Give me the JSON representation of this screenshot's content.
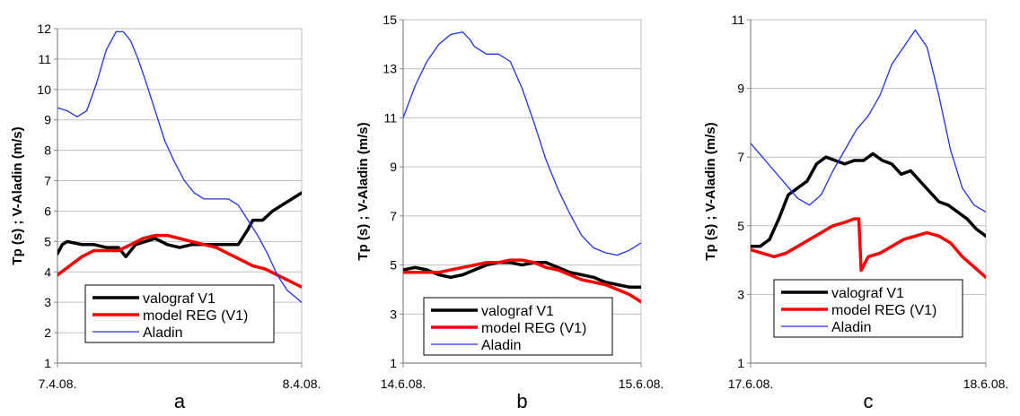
{
  "colors": {
    "valograf": "#000000",
    "model": "#ff0000",
    "aladin": "#2030e0",
    "grid": "#c0c0c0",
    "axis": "#888888"
  },
  "chart_data": [
    {
      "type": "line",
      "panel_label": "a",
      "ylabel": "Tp (s) ; V-Aladin (m/s)",
      "ylim": [
        1,
        12
      ],
      "yticks": [
        1,
        2,
        3,
        4,
        5,
        6,
        7,
        8,
        9,
        10,
        11,
        12
      ],
      "xlim": [
        0,
        1
      ],
      "xtick_labels": [
        "7.4.08.",
        "8.4.08."
      ],
      "grid": "horizontal",
      "legend_position": "bottom-left",
      "series": [
        {
          "name": "valograf V1",
          "color_key": "valograf",
          "width": 3.5,
          "x": [
            0,
            0.02,
            0.04,
            0.1,
            0.15,
            0.2,
            0.25,
            0.28,
            0.32,
            0.36,
            0.4,
            0.45,
            0.5,
            0.55,
            0.6,
            0.65,
            0.7,
            0.74,
            0.78,
            0.8,
            0.84,
            0.88,
            0.92,
            0.96,
            1
          ],
          "y": [
            4.6,
            4.9,
            5.0,
            4.9,
            4.9,
            4.8,
            4.8,
            4.5,
            4.9,
            5.0,
            5.1,
            4.9,
            4.8,
            4.9,
            4.9,
            4.9,
            4.9,
            4.9,
            5.4,
            5.7,
            5.7,
            6.0,
            6.2,
            6.4,
            6.6
          ]
        },
        {
          "name": "model REG (V1)",
          "color_key": "model",
          "width": 3.5,
          "x": [
            0,
            0.05,
            0.1,
            0.15,
            0.2,
            0.25,
            0.3,
            0.35,
            0.4,
            0.45,
            0.5,
            0.55,
            0.6,
            0.65,
            0.7,
            0.75,
            0.8,
            0.85,
            0.9,
            0.95,
            1
          ],
          "y": [
            3.9,
            4.2,
            4.5,
            4.7,
            4.7,
            4.7,
            4.9,
            5.1,
            5.2,
            5.2,
            5.1,
            5.0,
            4.9,
            4.8,
            4.6,
            4.4,
            4.2,
            4.1,
            3.9,
            3.7,
            3.5
          ]
        },
        {
          "name": "Aladin",
          "color_key": "aladin",
          "width": 1.3,
          "x": [
            0,
            0.04,
            0.08,
            0.12,
            0.16,
            0.2,
            0.24,
            0.27,
            0.3,
            0.33,
            0.36,
            0.4,
            0.44,
            0.48,
            0.52,
            0.56,
            0.6,
            0.64,
            0.66,
            0.7,
            0.74,
            0.78,
            0.82,
            0.86,
            0.9,
            0.94,
            0.97,
            1
          ],
          "y": [
            9.4,
            9.3,
            9.1,
            9.3,
            10.2,
            11.3,
            11.9,
            11.9,
            11.6,
            11.0,
            10.3,
            9.3,
            8.3,
            7.6,
            7.0,
            6.6,
            6.4,
            6.4,
            6.4,
            6.4,
            6.2,
            5.7,
            5.2,
            4.6,
            3.9,
            3.4,
            3.2,
            3.0
          ]
        }
      ]
    },
    {
      "type": "line",
      "panel_label": "b",
      "ylabel": "Tp (s) ; V-Aladin (m/s)",
      "ylim": [
        1,
        15
      ],
      "yticks": [
        1,
        3,
        5,
        7,
        9,
        11,
        13,
        15
      ],
      "xlim": [
        0,
        1
      ],
      "xtick_labels": [
        "14.6.08.",
        "15.6.08."
      ],
      "grid": "horizontal",
      "legend_position": "bottom-left",
      "series": [
        {
          "name": "valograf V1",
          "color_key": "valograf",
          "width": 3.5,
          "x": [
            0,
            0.05,
            0.1,
            0.15,
            0.2,
            0.25,
            0.3,
            0.35,
            0.4,
            0.45,
            0.5,
            0.55,
            0.6,
            0.65,
            0.7,
            0.75,
            0.8,
            0.85,
            0.9,
            0.95,
            1
          ],
          "y": [
            4.8,
            4.9,
            4.8,
            4.6,
            4.5,
            4.6,
            4.8,
            5.0,
            5.1,
            5.1,
            5.0,
            5.1,
            5.1,
            4.9,
            4.7,
            4.6,
            4.5,
            4.3,
            4.2,
            4.1,
            4.1
          ]
        },
        {
          "name": "model REG (V1)",
          "color_key": "model",
          "width": 3.5,
          "x": [
            0,
            0.05,
            0.1,
            0.15,
            0.2,
            0.25,
            0.3,
            0.35,
            0.4,
            0.45,
            0.5,
            0.55,
            0.6,
            0.65,
            0.7,
            0.75,
            0.8,
            0.85,
            0.9,
            0.95,
            1
          ],
          "y": [
            4.7,
            4.7,
            4.7,
            4.7,
            4.8,
            4.9,
            5.0,
            5.1,
            5.1,
            5.2,
            5.2,
            5.1,
            4.9,
            4.8,
            4.6,
            4.4,
            4.3,
            4.2,
            4.0,
            3.8,
            3.5
          ]
        },
        {
          "name": "Aladin",
          "color_key": "aladin",
          "width": 1.3,
          "x": [
            0,
            0.05,
            0.1,
            0.15,
            0.2,
            0.25,
            0.28,
            0.3,
            0.35,
            0.4,
            0.45,
            0.5,
            0.55,
            0.6,
            0.65,
            0.7,
            0.75,
            0.8,
            0.85,
            0.9,
            0.95,
            1
          ],
          "y": [
            11.0,
            12.3,
            13.3,
            14.0,
            14.4,
            14.5,
            14.2,
            13.9,
            13.6,
            13.6,
            13.3,
            12.2,
            10.8,
            9.3,
            8.1,
            7.1,
            6.2,
            5.7,
            5.5,
            5.4,
            5.6,
            5.9
          ]
        }
      ]
    },
    {
      "type": "line",
      "panel_label": "c",
      "ylabel": "Tp (s) ; V-Aladin (m/s)",
      "ylim": [
        1,
        11
      ],
      "yticks": [
        1,
        3,
        5,
        7,
        9,
        11
      ],
      "xlim": [
        0,
        1
      ],
      "xtick_labels": [
        "17.6.08.",
        "18.6.08."
      ],
      "grid": "horizontal",
      "legend_position": "bottom-left",
      "series": [
        {
          "name": "valograf V1",
          "color_key": "valograf",
          "width": 3.5,
          "x": [
            0,
            0.04,
            0.08,
            0.12,
            0.16,
            0.2,
            0.24,
            0.28,
            0.32,
            0.36,
            0.4,
            0.44,
            0.48,
            0.52,
            0.56,
            0.6,
            0.64,
            0.68,
            0.72,
            0.76,
            0.8,
            0.84,
            0.88,
            0.92,
            0.96,
            1
          ],
          "y": [
            4.4,
            4.4,
            4.6,
            5.2,
            5.9,
            6.1,
            6.3,
            6.8,
            7.0,
            6.9,
            6.8,
            6.9,
            6.9,
            7.1,
            6.9,
            6.8,
            6.5,
            6.6,
            6.3,
            6.0,
            5.7,
            5.6,
            5.4,
            5.2,
            4.9,
            4.7
          ]
        },
        {
          "name": "model REG (V1)",
          "color_key": "model",
          "width": 3.5,
          "x": [
            0,
            0.05,
            0.1,
            0.15,
            0.2,
            0.25,
            0.3,
            0.35,
            0.4,
            0.44,
            0.46,
            0.47,
            0.5,
            0.55,
            0.6,
            0.65,
            0.7,
            0.75,
            0.8,
            0.85,
            0.9,
            0.95,
            1
          ],
          "y": [
            4.3,
            4.2,
            4.1,
            4.2,
            4.4,
            4.6,
            4.8,
            5.0,
            5.1,
            5.2,
            5.2,
            3.7,
            4.1,
            4.2,
            4.4,
            4.6,
            4.7,
            4.8,
            4.7,
            4.5,
            4.1,
            3.8,
            3.5
          ]
        },
        {
          "name": "Aladin",
          "color_key": "aladin",
          "width": 1.3,
          "x": [
            0,
            0.05,
            0.1,
            0.15,
            0.2,
            0.25,
            0.3,
            0.35,
            0.4,
            0.45,
            0.5,
            0.55,
            0.6,
            0.65,
            0.7,
            0.75,
            0.8,
            0.85,
            0.9,
            0.95,
            1
          ],
          "y": [
            7.4,
            7.0,
            6.6,
            6.2,
            5.8,
            5.6,
            5.9,
            6.6,
            7.2,
            7.8,
            8.2,
            8.8,
            9.7,
            10.2,
            10.7,
            10.2,
            8.8,
            7.2,
            6.1,
            5.6,
            5.4
          ]
        }
      ]
    }
  ]
}
